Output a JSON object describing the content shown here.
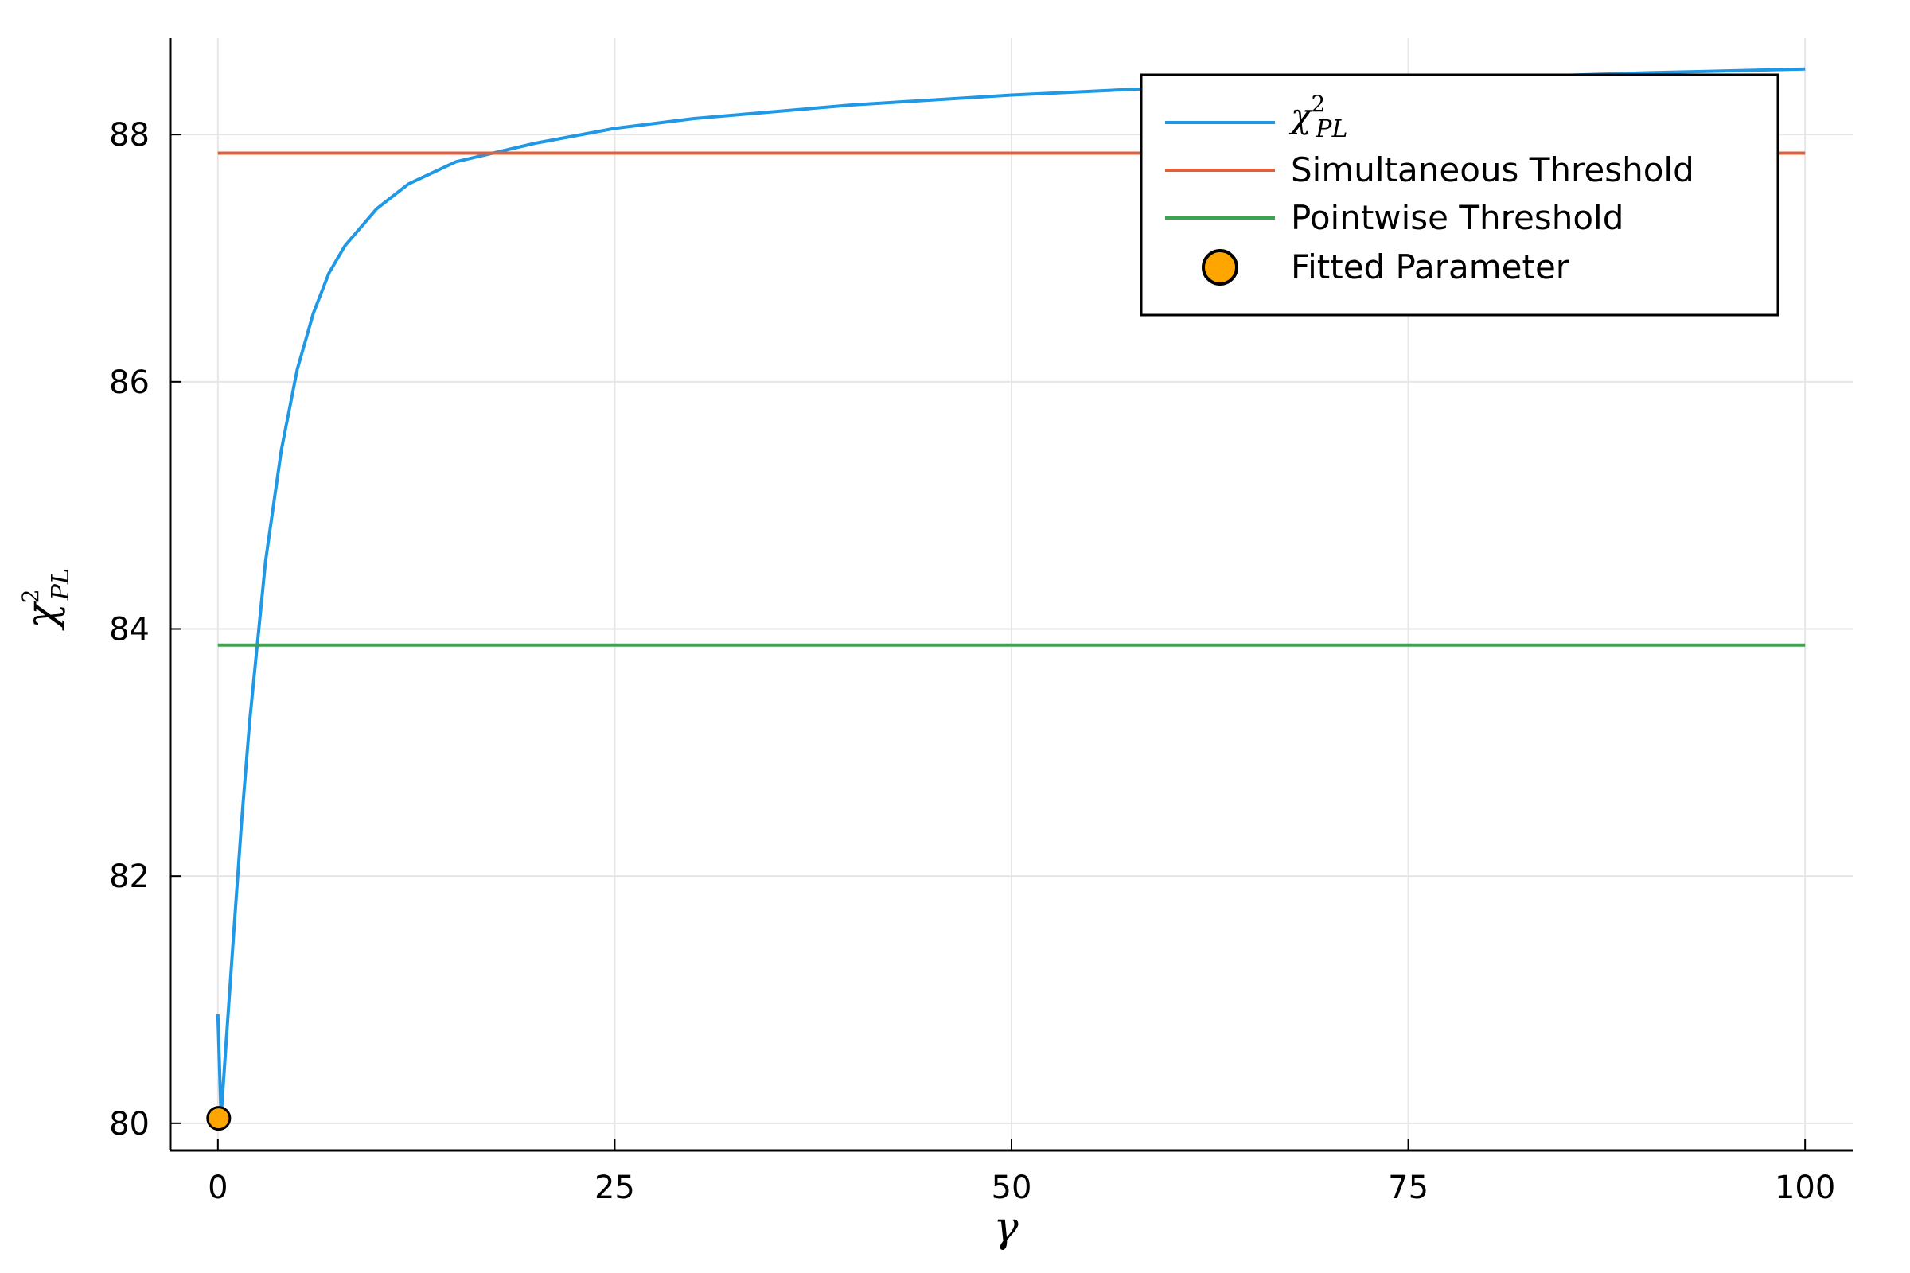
{
  "chart_data": {
    "type": "line",
    "xlabel": "γ",
    "ylabel": {
      "base": "χ",
      "sup": "2",
      "sub": "PL"
    },
    "xlim": [
      -3,
      103
    ],
    "ylim": [
      79.78,
      88.78
    ],
    "xticks": [
      0,
      25,
      50,
      75,
      100
    ],
    "xtick_labels": [
      "0",
      "25",
      "50",
      "75",
      "100"
    ],
    "yticks": [
      80,
      82,
      84,
      86,
      88
    ],
    "ytick_labels": [
      "80",
      "82",
      "84",
      "86",
      "88"
    ],
    "grid": true,
    "legend_position": "top-right",
    "series": [
      {
        "name": "χ²_PL",
        "label": {
          "base": "χ",
          "sup": "2",
          "sub": "PL"
        },
        "kind": "line",
        "color": "#1f98e5",
        "x": [
          0,
          0.2,
          0.5,
          1,
          1.5,
          2,
          3,
          4,
          5,
          6,
          7,
          8,
          10,
          12,
          15,
          20,
          25,
          30,
          40,
          50,
          60,
          70,
          80,
          90,
          100
        ],
        "y": [
          80.88,
          80.05,
          80.62,
          81.55,
          82.45,
          83.25,
          84.55,
          85.45,
          86.1,
          86.55,
          86.88,
          87.1,
          87.4,
          87.6,
          87.78,
          87.93,
          88.05,
          88.13,
          88.24,
          88.32,
          88.38,
          88.42,
          88.46,
          88.5,
          88.53
        ]
      },
      {
        "name": "Simultaneous Threshold",
        "kind": "hline",
        "color": "#e0603c",
        "x": [
          0,
          100
        ],
        "y": [
          87.85,
          87.85
        ]
      },
      {
        "name": "Pointwise Threshold",
        "kind": "hline",
        "color": "#3ca351",
        "x": [
          0,
          100
        ],
        "y": [
          83.87,
          83.87
        ]
      },
      {
        "name": "Fitted Parameter",
        "kind": "scatter",
        "color": "#ffa500",
        "x": [
          0.05
        ],
        "y": [
          80.04
        ]
      }
    ]
  }
}
